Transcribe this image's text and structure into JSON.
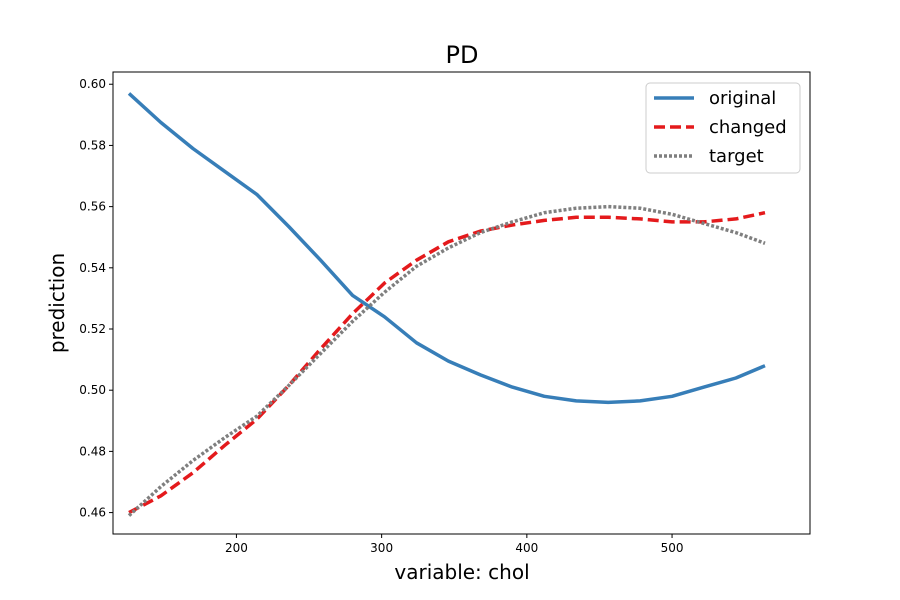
{
  "chart_data": {
    "type": "line",
    "title": "PD",
    "xlabel": "variable: chol",
    "ylabel": "prediction",
    "xlim": [
      115,
      595
    ],
    "ylim": [
      0.453,
      0.604
    ],
    "xticks": [
      200,
      300,
      400,
      500
    ],
    "yticks": [
      0.46,
      0.48,
      0.5,
      0.52,
      0.54,
      0.56,
      0.58,
      0.6
    ],
    "xtick_labels": [
      "200",
      "300",
      "400",
      "500"
    ],
    "ytick_labels": [
      "0.46",
      "0.48",
      "0.50",
      "0.52",
      "0.54",
      "0.56",
      "0.58",
      "0.60"
    ],
    "legend_position": "top-right",
    "grid": false,
    "series": [
      {
        "name": "original",
        "color": "#377eb8",
        "style": "solid",
        "x": [
          126,
          148,
          170,
          192,
          214,
          236,
          258,
          280,
          302,
          324,
          346,
          368,
          390,
          412,
          434,
          456,
          478,
          500,
          522,
          544,
          564
        ],
        "y": [
          0.597,
          0.5875,
          0.579,
          0.5715,
          0.564,
          0.5535,
          0.5425,
          0.531,
          0.524,
          0.5155,
          0.5095,
          0.505,
          0.501,
          0.498,
          0.4965,
          0.496,
          0.4965,
          0.498,
          0.501,
          0.504,
          0.508
        ]
      },
      {
        "name": "changed",
        "color": "#e41a1c",
        "style": "dashed",
        "x": [
          126,
          148,
          170,
          192,
          214,
          236,
          258,
          280,
          302,
          324,
          346,
          368,
          390,
          412,
          434,
          456,
          478,
          500,
          522,
          544,
          564
        ],
        "y": [
          0.46,
          0.4655,
          0.473,
          0.482,
          0.4905,
          0.5015,
          0.5135,
          0.525,
          0.535,
          0.5425,
          0.5485,
          0.552,
          0.554,
          0.5555,
          0.5565,
          0.5565,
          0.556,
          0.555,
          0.555,
          0.556,
          0.558
        ]
      },
      {
        "name": "target",
        "color": "#7f7f7f",
        "style": "dotted",
        "x": [
          126,
          148,
          170,
          192,
          214,
          236,
          258,
          280,
          302,
          324,
          346,
          368,
          390,
          412,
          434,
          456,
          478,
          500,
          522,
          544,
          564
        ],
        "y": [
          0.459,
          0.4685,
          0.477,
          0.4845,
          0.4915,
          0.5015,
          0.512,
          0.5225,
          0.532,
          0.5405,
          0.5465,
          0.5515,
          0.555,
          0.558,
          0.5595,
          0.56,
          0.5595,
          0.5575,
          0.5545,
          0.5515,
          0.548
        ]
      }
    ]
  }
}
